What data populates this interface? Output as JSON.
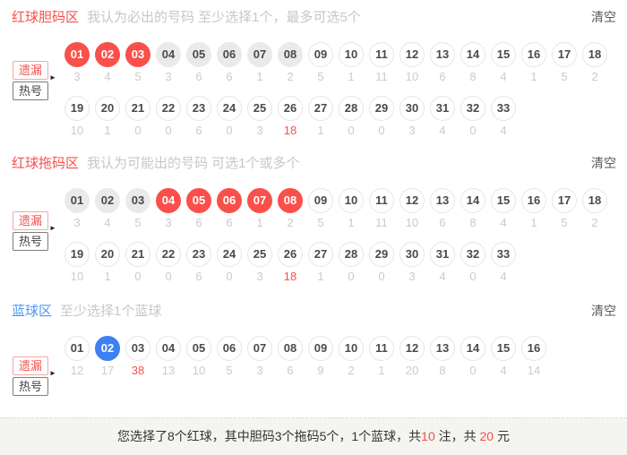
{
  "colors": {
    "red_accent": "#f9504c",
    "blue_accent": "#3d80f4",
    "disabled_ball_bg": "#eaeaea",
    "stat_gray": "#cbcbcb",
    "summary_bar_bg": "#f4f4f1"
  },
  "sections": [
    {
      "title": "红球胆码区",
      "description": "我认为必出的号码 至少选择1个，最多可选5个",
      "clear_label": "清空",
      "toggle": {
        "omission": "遗漏",
        "hot": "热号"
      },
      "rows": [
        {
          "balls": [
            {
              "n": "01",
              "state": "red",
              "stat": "3",
              "hot": false
            },
            {
              "n": "02",
              "state": "red",
              "stat": "4",
              "hot": false
            },
            {
              "n": "03",
              "state": "red",
              "stat": "5",
              "hot": false
            },
            {
              "n": "04",
              "state": "disabled",
              "stat": "3",
              "hot": false
            },
            {
              "n": "05",
              "state": "disabled",
              "stat": "6",
              "hot": false
            },
            {
              "n": "06",
              "state": "disabled",
              "stat": "6",
              "hot": false
            },
            {
              "n": "07",
              "state": "disabled",
              "stat": "1",
              "hot": false
            },
            {
              "n": "08",
              "state": "disabled",
              "stat": "2",
              "hot": false
            },
            {
              "n": "09",
              "state": "default",
              "stat": "5",
              "hot": false
            },
            {
              "n": "10",
              "state": "default",
              "stat": "1",
              "hot": false
            },
            {
              "n": "11",
              "state": "default",
              "stat": "11",
              "hot": false
            },
            {
              "n": "12",
              "state": "default",
              "stat": "10",
              "hot": false
            },
            {
              "n": "13",
              "state": "default",
              "stat": "6",
              "hot": false
            },
            {
              "n": "14",
              "state": "default",
              "stat": "8",
              "hot": false
            },
            {
              "n": "15",
              "state": "default",
              "stat": "4",
              "hot": false
            },
            {
              "n": "16",
              "state": "default",
              "stat": "1",
              "hot": false
            },
            {
              "n": "17",
              "state": "default",
              "stat": "5",
              "hot": false
            },
            {
              "n": "18",
              "state": "default",
              "stat": "2",
              "hot": false
            }
          ]
        },
        {
          "balls": [
            {
              "n": "19",
              "state": "default",
              "stat": "10",
              "hot": false
            },
            {
              "n": "20",
              "state": "default",
              "stat": "1",
              "hot": false
            },
            {
              "n": "21",
              "state": "default",
              "stat": "0",
              "hot": false
            },
            {
              "n": "22",
              "state": "default",
              "stat": "0",
              "hot": false
            },
            {
              "n": "23",
              "state": "default",
              "stat": "6",
              "hot": false
            },
            {
              "n": "24",
              "state": "default",
              "stat": "0",
              "hot": false
            },
            {
              "n": "25",
              "state": "default",
              "stat": "3",
              "hot": false
            },
            {
              "n": "26",
              "state": "default",
              "stat": "18",
              "hot": true
            },
            {
              "n": "27",
              "state": "default",
              "stat": "1",
              "hot": false
            },
            {
              "n": "28",
              "state": "default",
              "stat": "0",
              "hot": false
            },
            {
              "n": "29",
              "state": "default",
              "stat": "0",
              "hot": false
            },
            {
              "n": "30",
              "state": "default",
              "stat": "3",
              "hot": false
            },
            {
              "n": "31",
              "state": "default",
              "stat": "4",
              "hot": false
            },
            {
              "n": "32",
              "state": "default",
              "stat": "0",
              "hot": false
            },
            {
              "n": "33",
              "state": "default",
              "stat": "4",
              "hot": false
            }
          ]
        }
      ]
    },
    {
      "title": "红球拖码区",
      "description": "我认为可能出的号码 可选1个或多个",
      "clear_label": "清空",
      "toggle": {
        "omission": "遗漏",
        "hot": "热号"
      },
      "rows": [
        {
          "balls": [
            {
              "n": "01",
              "state": "disabled",
              "stat": "3",
              "hot": false
            },
            {
              "n": "02",
              "state": "disabled",
              "stat": "4",
              "hot": false
            },
            {
              "n": "03",
              "state": "disabled",
              "stat": "5",
              "hot": false
            },
            {
              "n": "04",
              "state": "red",
              "stat": "3",
              "hot": false
            },
            {
              "n": "05",
              "state": "red",
              "stat": "6",
              "hot": false
            },
            {
              "n": "06",
              "state": "red",
              "stat": "6",
              "hot": false
            },
            {
              "n": "07",
              "state": "red",
              "stat": "1",
              "hot": false
            },
            {
              "n": "08",
              "state": "red",
              "stat": "2",
              "hot": false
            },
            {
              "n": "09",
              "state": "default",
              "stat": "5",
              "hot": false
            },
            {
              "n": "10",
              "state": "default",
              "stat": "1",
              "hot": false
            },
            {
              "n": "11",
              "state": "default",
              "stat": "11",
              "hot": false
            },
            {
              "n": "12",
              "state": "default",
              "stat": "10",
              "hot": false
            },
            {
              "n": "13",
              "state": "default",
              "stat": "6",
              "hot": false
            },
            {
              "n": "14",
              "state": "default",
              "stat": "8",
              "hot": false
            },
            {
              "n": "15",
              "state": "default",
              "stat": "4",
              "hot": false
            },
            {
              "n": "16",
              "state": "default",
              "stat": "1",
              "hot": false
            },
            {
              "n": "17",
              "state": "default",
              "stat": "5",
              "hot": false
            },
            {
              "n": "18",
              "state": "default",
              "stat": "2",
              "hot": false
            }
          ]
        },
        {
          "balls": [
            {
              "n": "19",
              "state": "default",
              "stat": "10",
              "hot": false
            },
            {
              "n": "20",
              "state": "default",
              "stat": "1",
              "hot": false
            },
            {
              "n": "21",
              "state": "default",
              "stat": "0",
              "hot": false
            },
            {
              "n": "22",
              "state": "default",
              "stat": "0",
              "hot": false
            },
            {
              "n": "23",
              "state": "default",
              "stat": "6",
              "hot": false
            },
            {
              "n": "24",
              "state": "default",
              "stat": "0",
              "hot": false
            },
            {
              "n": "25",
              "state": "default",
              "stat": "3",
              "hot": false
            },
            {
              "n": "26",
              "state": "default",
              "stat": "18",
              "hot": true
            },
            {
              "n": "27",
              "state": "default",
              "stat": "1",
              "hot": false
            },
            {
              "n": "28",
              "state": "default",
              "stat": "0",
              "hot": false
            },
            {
              "n": "29",
              "state": "default",
              "stat": "0",
              "hot": false
            },
            {
              "n": "30",
              "state": "default",
              "stat": "3",
              "hot": false
            },
            {
              "n": "31",
              "state": "default",
              "stat": "4",
              "hot": false
            },
            {
              "n": "32",
              "state": "default",
              "stat": "0",
              "hot": false
            },
            {
              "n": "33",
              "state": "default",
              "stat": "4",
              "hot": false
            }
          ]
        }
      ]
    },
    {
      "title": "蓝球区",
      "description": "至少选择1个蓝球",
      "clear_label": "清空",
      "toggle": {
        "omission": "遗漏",
        "hot": "热号"
      },
      "rows": [
        {
          "balls": [
            {
              "n": "01",
              "state": "default",
              "stat": "12",
              "hot": false
            },
            {
              "n": "02",
              "state": "blue",
              "stat": "17",
              "hot": false
            },
            {
              "n": "03",
              "state": "default",
              "stat": "38",
              "hot": true
            },
            {
              "n": "04",
              "state": "default",
              "stat": "13",
              "hot": false
            },
            {
              "n": "05",
              "state": "default",
              "stat": "10",
              "hot": false
            },
            {
              "n": "06",
              "state": "default",
              "stat": "5",
              "hot": false
            },
            {
              "n": "07",
              "state": "default",
              "stat": "3",
              "hot": false
            },
            {
              "n": "08",
              "state": "default",
              "stat": "6",
              "hot": false
            },
            {
              "n": "09",
              "state": "default",
              "stat": "9",
              "hot": false
            },
            {
              "n": "10",
              "state": "default",
              "stat": "2",
              "hot": false
            },
            {
              "n": "11",
              "state": "default",
              "stat": "1",
              "hot": false
            },
            {
              "n": "12",
              "state": "default",
              "stat": "20",
              "hot": false
            },
            {
              "n": "13",
              "state": "default",
              "stat": "8",
              "hot": false
            },
            {
              "n": "14",
              "state": "default",
              "stat": "0",
              "hot": false
            },
            {
              "n": "15",
              "state": "default",
              "stat": "4",
              "hot": false
            },
            {
              "n": "16",
              "state": "default",
              "stat": "14",
              "hot": false
            }
          ]
        }
      ]
    }
  ],
  "summary": {
    "prefix": "您选择了8个红球，其中胆码3个拖码5个，1个蓝球，共",
    "bets": "10",
    "middle": " 注，共 ",
    "price": "20",
    "suffix": " 元"
  }
}
